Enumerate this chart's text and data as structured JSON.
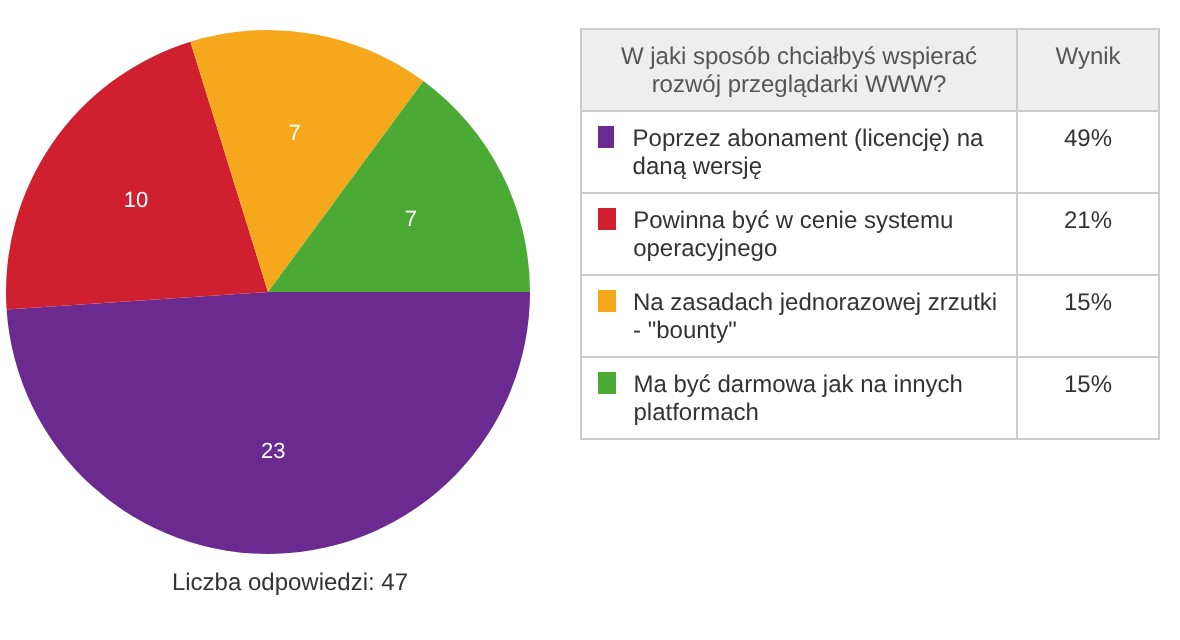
{
  "chart_data": {
    "type": "pie",
    "legend_title": "W jaki sposób chciałbyś wspierać rozwój przeglądarki WWW?",
    "categories": [
      "Poprzez abonament (licencję) na daną wersję",
      "Powinna być w cenie systemu operacyjnego",
      "Na zasadach jednorazowej zrzutki - \"bounty\"",
      "Ma być darmowa jak na innych platformach"
    ],
    "values": [
      23,
      10,
      7,
      7
    ],
    "colors": [
      "#6b2a8f",
      "#d0202f",
      "#f6a81c",
      "#4aaa33"
    ],
    "data_labels": true,
    "legend": "right",
    "annotations": [
      "Liczba odpowiedzi: 47",
      "Wynik",
      {
        "text": "49%",
        "x": "Poprzez abonament (licencję) na daną wersję"
      },
      {
        "text": "21%",
        "x": "Powinna być w cenie systemu operacyjnego"
      },
      {
        "text": "15%",
        "x": "Na zasadach jednorazowej zrzutki - \"bounty\""
      },
      {
        "text": "15%",
        "x": "Ma być darmowa jak na innych platformach"
      }
    ]
  }
}
